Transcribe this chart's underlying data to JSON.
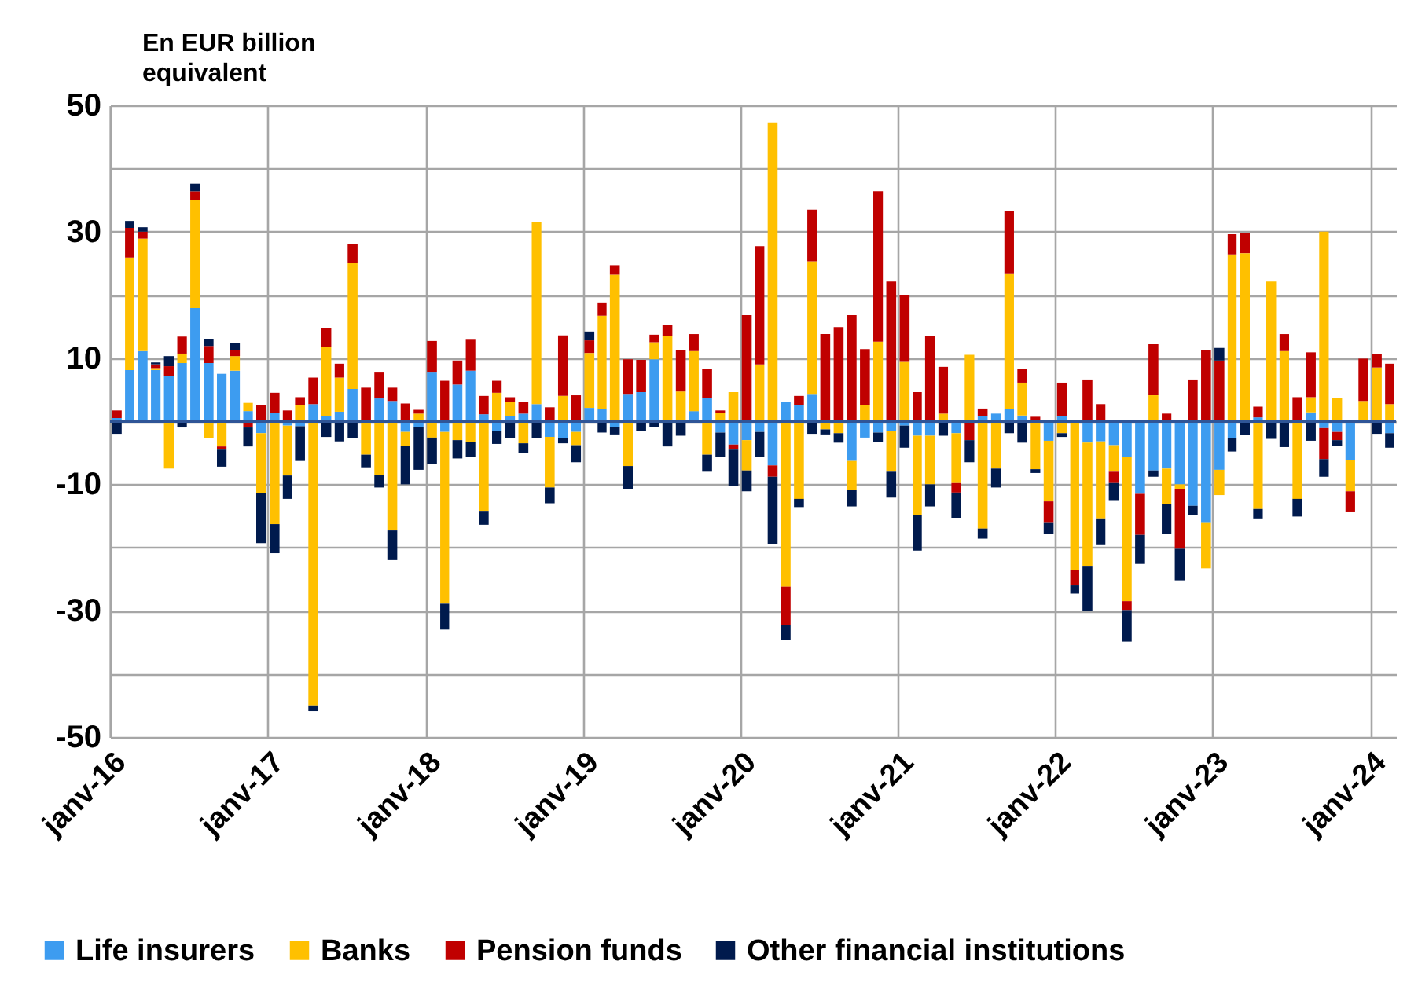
{
  "chart_data": {
    "type": "bar",
    "stacked": true,
    "ylabel": "En EUR billion equivalent",
    "x": [
      "2016-01",
      "2016-02",
      "2016-03",
      "2016-04",
      "2016-05",
      "2016-06",
      "2016-07",
      "2016-08",
      "2016-09",
      "2016-10",
      "2016-11",
      "2016-12",
      "2017-01",
      "2017-02",
      "2017-03",
      "2017-04",
      "2017-05",
      "2017-06",
      "2017-07",
      "2017-08",
      "2017-09",
      "2017-10",
      "2017-11",
      "2017-12",
      "2018-01",
      "2018-02",
      "2018-03",
      "2018-04",
      "2018-05",
      "2018-06",
      "2018-07",
      "2018-08",
      "2018-09",
      "2018-10",
      "2018-11",
      "2018-12",
      "2019-01",
      "2019-02",
      "2019-03",
      "2019-04",
      "2019-05",
      "2019-06",
      "2019-07",
      "2019-08",
      "2019-09",
      "2019-10",
      "2019-11",
      "2019-12",
      "2020-01",
      "2020-02",
      "2020-03",
      "2020-04",
      "2020-05",
      "2020-06",
      "2020-07",
      "2020-08",
      "2020-09",
      "2020-10",
      "2020-11",
      "2020-12",
      "2021-01",
      "2021-02",
      "2021-03",
      "2021-04",
      "2021-05",
      "2021-06",
      "2021-07",
      "2021-08",
      "2021-09",
      "2021-10",
      "2021-11",
      "2021-12",
      "2022-01",
      "2022-02",
      "2022-03",
      "2022-04",
      "2022-05",
      "2022-06",
      "2022-07",
      "2022-08",
      "2022-09",
      "2022-10",
      "2022-11",
      "2022-12",
      "2023-01",
      "2023-02",
      "2023-03",
      "2023-04",
      "2023-05",
      "2023-06",
      "2023-07",
      "2023-08",
      "2023-09",
      "2023-10",
      "2023-11",
      "2023-12",
      "2024-01",
      "2024-02"
    ],
    "series": [
      {
        "name": "Life insurers",
        "color": "#3d9cf0",
        "values": [
          0.5,
          8.1,
          11.1,
          8.1,
          7.1,
          9.2,
          17.9,
          9.2,
          7.5,
          8,
          1.6,
          -1.9,
          1.3,
          -0.7,
          -0.8,
          2.7,
          0.8,
          1.5,
          5.1,
          0,
          3.6,
          3.2,
          -1.7,
          -0.9,
          7.7,
          -1.7,
          5.8,
          8,
          1.1,
          -1.5,
          0.8,
          1.2,
          2.7,
          -2.5,
          -2.7,
          -1.7,
          2.1,
          2,
          -0.9,
          4.2,
          4.6,
          9.8,
          null,
          0,
          1.6,
          3.7,
          -1.8,
          -3.7,
          -3,
          -1.7,
          -7,
          3.1,
          2.6,
          4.2,
          0,
          0,
          -6.3,
          -2.6,
          -1.8,
          -1.5,
          -0.7,
          -2.3,
          -2.3,
          0,
          -1.9,
          0,
          0.8,
          1.2,
          1.9,
          0.9,
          0,
          -3.1,
          0.8,
          0,
          -3.4,
          -3.2,
          -3.8,
          -5.7,
          -11.5,
          -7.8,
          -7.5,
          -10,
          -13.4,
          -16,
          -7.7,
          -2.7,
          0,
          0.6,
          0,
          0,
          0,
          1.4,
          -1.1,
          -1.7,
          -6.1,
          0,
          0,
          -1.9
        ]
      },
      {
        "name": "Banks",
        "color": "#ffc000",
        "values": [
          0,
          17.8,
          17.8,
          0.3,
          -7.5,
          1.5,
          17.1,
          -2.7,
          -4,
          2.3,
          1.3,
          -9.5,
          -16.3,
          -7.9,
          2.6,
          -45,
          10.9,
          5.4,
          19.9,
          -5.3,
          -8.5,
          -17.3,
          -2.2,
          1.2,
          -2.6,
          -27.2,
          -3,
          -3.3,
          -14.2,
          4.5,
          2.2,
          -3.5,
          28.9,
          -8,
          4,
          -2.1,
          8.7,
          14.7,
          23.2,
          -7.1,
          0,
          2.7,
          13.5,
          4.7,
          9.5,
          -5.3,
          1.3,
          4.6,
          -4.8,
          9,
          47.3,
          -26.2,
          -12.3,
          21.1,
          -1.3,
          -1.9,
          -4.6,
          2.5,
          12.6,
          -6.5,
          9.4,
          -12.5,
          -7.7,
          1.2,
          -7.9,
          10.5,
          -17,
          -7.5,
          21.4,
          5.2,
          -7.6,
          -9.6,
          -1.9,
          -23.6,
          -19.5,
          -12.2,
          -4.2,
          -22.8,
          0,
          4.1,
          -5.6,
          -0.7,
          0,
          -7.3,
          -4,
          26.4,
          26.6,
          -13.9,
          22.1,
          11.1,
          -12.3,
          2.4,
          30,
          3.7,
          -5,
          3.2,
          8.5,
          2.7
        ]
      },
      {
        "name": "Pension funds",
        "color": "#c00000",
        "values": [
          1.2,
          4.7,
          1.1,
          0.6,
          1.6,
          2.7,
          1.4,
          2.7,
          -0.5,
          1,
          -1,
          2.6,
          3.2,
          1.7,
          1.2,
          4.2,
          3.1,
          2.2,
          3.1,
          5.3,
          4.1,
          2.1,
          2.8,
          0.6,
          5,
          6.4,
          3.8,
          4.9,
          2.9,
          1.9,
          0.8,
          1.8,
          0,
          2.2,
          9.6,
          4.1,
          2,
          2.1,
          1.5,
          5.6,
          5.1,
          1.2,
          1.7,
          6.6,
          2.7,
          4.6,
          0.4,
          -0.8,
          16.8,
          18.7,
          -1.8,
          -6.1,
          1.4,
          8.2,
          13.8,
          14.9,
          16.8,
          8.9,
          23.8,
          22.1,
          10.6,
          4.6,
          13.5,
          7.4,
          -1.5,
          -3,
          1.2,
          0,
          10,
          2.2,
          0.7,
          -3.3,
          5.3,
          -2.4,
          6.6,
          2.7,
          -1.8,
          -1.4,
          -6.5,
          8.1,
          1.2,
          -9.5,
          6.6,
          11.3,
          9.6,
          3.2,
          3.2,
          1.7,
          0,
          2.7,
          3.8,
          7.1,
          -4.9,
          -1.3,
          -3.2,
          6.7,
          2.2,
          6.4
        ]
      },
      {
        "name": "Other financial institutions",
        "color": "#001a4d",
        "values": [
          -2,
          1.1,
          0.7,
          0.3,
          1.6,
          -1,
          1.2,
          1.1,
          -2.7,
          1.1,
          -3,
          -7.9,
          -4.6,
          -3.7,
          -5.5,
          -0.9,
          -2.5,
          -3.2,
          -2.7,
          -2,
          -2,
          -4.7,
          -6.1,
          -6.8,
          -4.2,
          -4.1,
          -2.9,
          -2.3,
          -2.2,
          -2.1,
          -2.7,
          -1.6,
          -2.7,
          -2.5,
          -0.8,
          -2.7,
          1.4,
          -1.8,
          -1.2,
          -3.6,
          -1.6,
          -0.9,
          -4,
          -2.3,
          null,
          -2.7,
          -3.8,
          -5.8,
          -3.3,
          -4,
          -10.6,
          -2.4,
          -1.3,
          -2,
          -0.8,
          -1.5,
          -2.6,
          0,
          -1.5,
          -4.1,
          -3.5,
          -5.7,
          -3.5,
          -2.3,
          -4,
          -3.5,
          -1.6,
          -3,
          -1.9,
          -3.4,
          -0.6,
          -1.9,
          -0.6,
          -1.3,
          -7.2,
          -4.1,
          -2.7,
          -5,
          -4.6,
          -1,
          -4.7,
          -5,
          -1.5,
          0,
          2,
          -2.1,
          -2.2,
          -1.5,
          -2.8,
          -4.1,
          -2.8,
          -3.1,
          -2.8,
          -0.9,
          0,
          0,
          -2,
          -2.3
        ]
      }
    ],
    "xlim": [
      "2016-01",
      "2024-03"
    ],
    "xticks": [
      {
        "value": "2016-01",
        "label": "janv-16"
      },
      {
        "value": "2017-01",
        "label": "janv-17"
      },
      {
        "value": "2018-01",
        "label": "janv-18"
      },
      {
        "value": "2019-01",
        "label": "janv-19"
      },
      {
        "value": "2020-01",
        "label": "janv-20"
      },
      {
        "value": "2021-01",
        "label": "janv-21"
      },
      {
        "value": "2022-01",
        "label": "janv-22"
      },
      {
        "value": "2023-01",
        "label": "janv-23"
      },
      {
        "value": "2024-01",
        "label": "janv-24"
      }
    ],
    "ylim": [
      -50,
      50
    ],
    "yticks": [
      -50,
      {
        "value": -40,
        "label": null
      },
      -30,
      {
        "value": -20,
        "label": null
      },
      -10,
      {
        "value": 0,
        "label": null
      },
      10,
      {
        "value": 20,
        "label": null
      },
      30,
      {
        "value": 40,
        "label": null
      },
      50
    ],
    "ref_lines": [
      {
        "axis": "y",
        "value": 0,
        "color": "#2f5597"
      }
    ],
    "grid": true,
    "legend": "bottom"
  }
}
